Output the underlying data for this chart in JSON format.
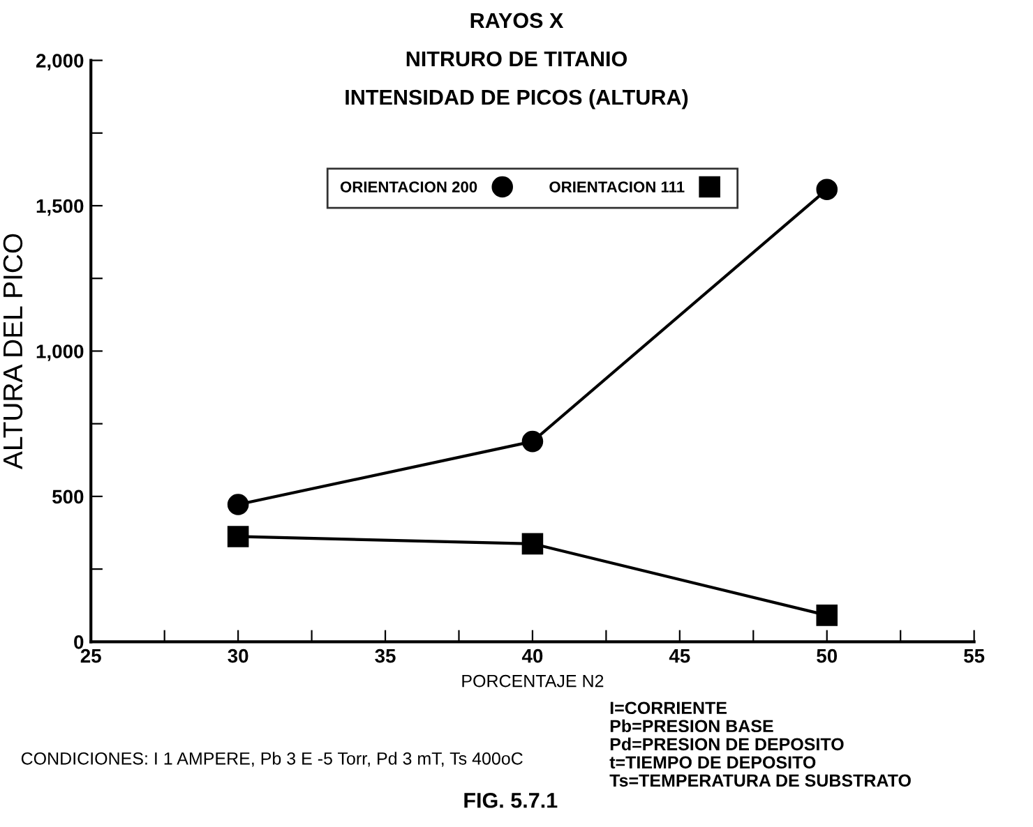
{
  "chart_data": {
    "type": "line",
    "title": "RAYOS X\nNITRURO DE TITANIO\nINTENSIDAD DE PICOS (ALTURA)",
    "xlabel": "PORCENTAJE N2",
    "ylabel": "ALTURA DEL PICO",
    "x": [
      30,
      40,
      50
    ],
    "series": [
      {
        "name": "ORIENTACION 200",
        "color": "#000000",
        "marker": "circle",
        "values": [
          472,
          689,
          1556
        ]
      },
      {
        "name": "ORIENTACION 111",
        "color": "#000000",
        "marker": "square",
        "values": [
          362,
          337,
          91
        ]
      }
    ],
    "xlim": [
      25,
      55
    ],
    "xticks": [
      25,
      {
        "value": 27.5,
        "label": null
      },
      30,
      {
        "value": 32.5,
        "label": null
      },
      35,
      {
        "value": 37.5,
        "label": null
      },
      40,
      {
        "value": 42.5,
        "label": null
      },
      45,
      {
        "value": 47.5,
        "label": null
      },
      50,
      {
        "value": 52.5,
        "label": null
      },
      55
    ],
    "ylim": [
      0,
      2000
    ],
    "yticks": [
      0,
      {
        "value": 250,
        "label": null
      },
      500,
      {
        "value": 750,
        "label": null
      },
      {
        "value": 1000,
        "label": "1,000"
      },
      {
        "value": 1250,
        "label": null
      },
      {
        "value": 1500,
        "label": "1,500"
      },
      {
        "value": 1750,
        "label": null
      },
      {
        "value": 2000,
        "label": "2,000"
      }
    ],
    "grid": false,
    "legend": "top",
    "line_style": "solid",
    "annotations": [
      "CONDICIONES: I 1 AMPERE, Pb 3 E -5 Torr, Pd 3 mT, Ts 400oC",
      "FIG. 5.7.1",
      "I=CORRIENTE\nPb=PRESION BASE\nPd=PRESION DE DEPOSITO\nt=TIEMPO DE DEPOSITO\nTs=TEMPERATURA DE SUBSTRATO"
    ]
  }
}
